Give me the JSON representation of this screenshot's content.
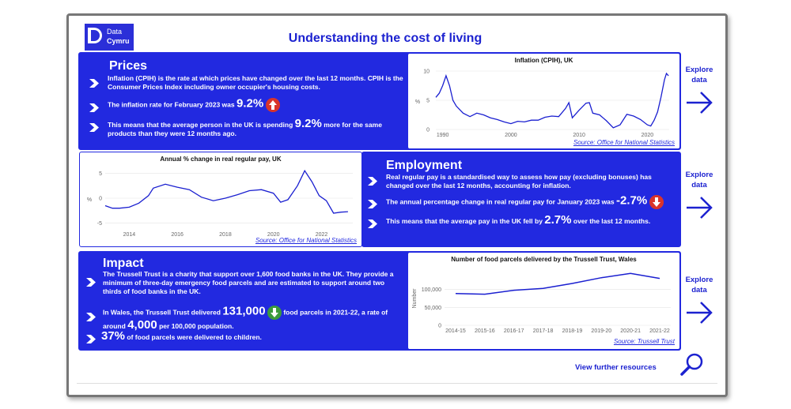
{
  "logo": {
    "line1": "Data",
    "line2": "Cymru"
  },
  "page_title": "Understanding the cost of living",
  "prices": {
    "heading": "Prices",
    "p1": "Inflation (CPIH) is the rate at which prices have changed over the last 12 months. CPIH is the Consumer Prices Index including owner occupier's housing costs.",
    "p2_pre": "The inflation rate for February 2023 was",
    "p2_value": "9.2%",
    "p3_pre": "This means that the average person in the UK is spending",
    "p3_value": "9.2%",
    "p3_post": "more for the same products than they were 12 months ago.",
    "badge_color": "#d9342b"
  },
  "employment": {
    "heading": "Employment",
    "p1": "Real regular pay is a standardised way to assess how pay (excluding bonuses) has changed over the last 12 months, accounting for inflation.",
    "p2_pre": "The annual percentage change in real regular pay for January 2023 was",
    "p2_value": "-2.7%",
    "p3_pre": "This means that the average pay in the UK fell by",
    "p3_value": "2.7%",
    "p3_post": "over the last 12 months.",
    "badge_color": "#d9342b"
  },
  "impact": {
    "heading": "Impact",
    "p1": "The Trussell Trust is a charity that support over 1,600 food banks in the UK. They provide a minimum of three-day emergency food parcels and are estimated to support around two thirds of food banks in the UK.",
    "p2_pre": "In Wales, the Trussell Trust delivered",
    "p2_value": "131,000",
    "p2_mid": "food parcels in 2021-22, a rate of around",
    "p2_value2": "4,000",
    "p2_post": "per 100,000 population.",
    "p3_value": "37%",
    "p3_post": "of food parcels were delivered to children.",
    "badge_color": "#3c9a3c"
  },
  "explore": {
    "line1": "Explore",
    "line2": "data"
  },
  "further_resources": "View further resources",
  "chart_data": [
    {
      "type": "line",
      "title": "Inflation (CPIH), UK",
      "ylabel": "%",
      "xlabel": "",
      "x_ticks": [
        "1990",
        "2000",
        "2010",
        "2020"
      ],
      "y_ticks": [
        "0",
        "5",
        "10"
      ],
      "ylim": [
        0,
        10
      ],
      "xlim": [
        1989,
        2023.2
      ],
      "x": [
        1989,
        1989.5,
        1990,
        1990.5,
        1991,
        1991.5,
        1992,
        1993,
        1994,
        1995,
        1996,
        1997,
        1998,
        1999,
        2000,
        2001,
        2002,
        2003,
        2004,
        2005,
        2006,
        2007,
        2008,
        2008.5,
        2009,
        2010,
        2011,
        2011.5,
        2012,
        2013,
        2014,
        2015,
        2016,
        2017,
        2018,
        2019,
        2020,
        2020.5,
        2021,
        2021.5,
        2022,
        2022.5,
        2022.8,
        2023.1
      ],
      "values": [
        5.5,
        6.2,
        7.5,
        9.2,
        7.5,
        5.0,
        4.0,
        2.8,
        2.2,
        2.8,
        2.5,
        2.0,
        1.7,
        1.3,
        1.0,
        1.4,
        1.3,
        1.6,
        1.6,
        2.1,
        2.3,
        2.2,
        3.6,
        4.6,
        2.0,
        3.3,
        4.5,
        4.6,
        2.8,
        2.5,
        1.5,
        0.3,
        0.8,
        2.6,
        2.3,
        1.7,
        0.8,
        0.6,
        1.6,
        3.0,
        5.5,
        8.5,
        9.6,
        9.2
      ],
      "source": "Source: Office for National Statistics"
    },
    {
      "type": "line",
      "title": "Annual % change in real regular pay, UK",
      "ylabel": "%",
      "xlabel": "",
      "x_ticks": [
        "2014",
        "2016",
        "2018",
        "2020",
        "2022"
      ],
      "y_ticks": [
        "5",
        "0",
        "-5"
      ],
      "ylim": [
        -6,
        6
      ],
      "xlim": [
        2013,
        2023.3
      ],
      "x": [
        2013,
        2013.3,
        2013.6,
        2014,
        2014.4,
        2014.8,
        2015,
        2015.5,
        2016,
        2016.5,
        2017,
        2017.5,
        2018,
        2018.5,
        2019,
        2019.5,
        2020,
        2020.3,
        2020.6,
        2021,
        2021.3,
        2021.6,
        2021.9,
        2022.2,
        2022.5,
        2022.8,
        2023.1
      ],
      "values": [
        -1.5,
        -2.0,
        -2.0,
        -1.8,
        -1.0,
        0.5,
        2.0,
        2.8,
        2.2,
        1.7,
        0.2,
        -0.5,
        0.0,
        0.7,
        1.5,
        1.7,
        1.0,
        -0.8,
        -0.3,
        2.5,
        5.5,
        3.3,
        0.5,
        -0.5,
        -3.0,
        -2.8,
        -2.7
      ],
      "source": "Source: Office for National Statistics"
    },
    {
      "type": "line",
      "title": "Number of food parcels delivered by the Trussell Trust, Wales",
      "ylabel": "Number",
      "xlabel": "",
      "categories": [
        "2014-15",
        "2015-16",
        "2016-17",
        "2017-18",
        "2018-19",
        "2019-20",
        "2020-21",
        "2021-22"
      ],
      "values": [
        89000,
        87000,
        98000,
        103000,
        117000,
        133000,
        145000,
        131000
      ],
      "y_ticks": [
        "100,000",
        "50,000",
        "0"
      ],
      "ylim": [
        0,
        150000
      ],
      "source": "Source: Trussell Trust"
    }
  ]
}
